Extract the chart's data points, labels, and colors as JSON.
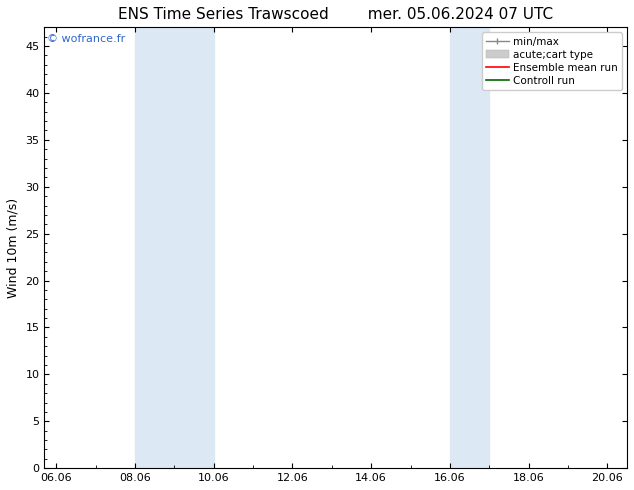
{
  "title_left": "ENS Time Series Trawscoed",
  "title_right": "mer. 05.06.2024 07 UTC",
  "ylabel": "Wind 10m (m/s)",
  "ylim": [
    0,
    47
  ],
  "yticks": [
    0,
    5,
    10,
    15,
    20,
    25,
    30,
    35,
    40,
    45
  ],
  "xlabel_ticks": [
    "06.06",
    "08.06",
    "10.06",
    "12.06",
    "14.06",
    "16.06",
    "18.06",
    "20.06"
  ],
  "shaded_color": "#dce9f5",
  "background_color": "#ffffff",
  "border_color": "#000000",
  "watermark_text": "© wofrance.fr",
  "watermark_color": "#3366cc",
  "title_fontsize": 11,
  "axis_fontsize": 9,
  "tick_fontsize": 8,
  "watermark_fontsize": 8,
  "legend_fontsize": 7.5
}
